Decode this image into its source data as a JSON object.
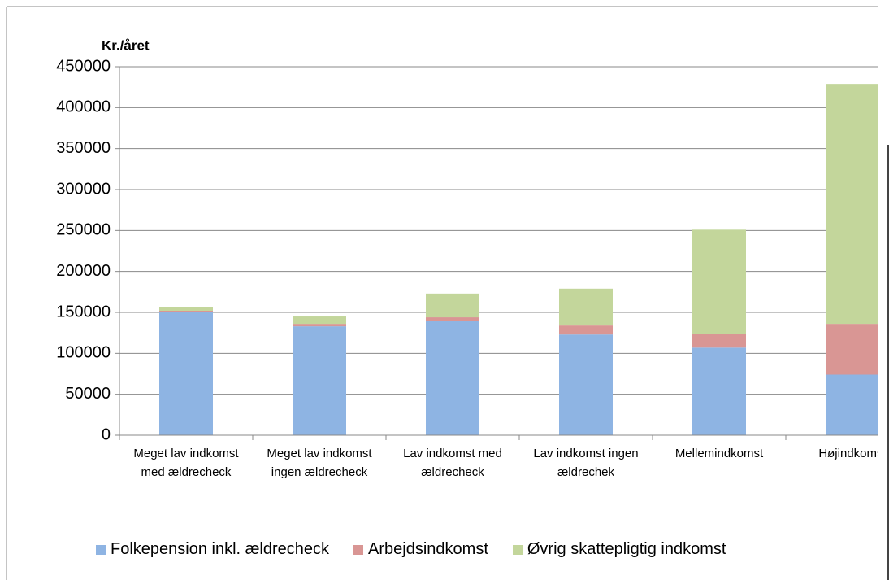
{
  "chart_data": {
    "type": "stacked_bar",
    "y_label": "Kr./året",
    "categories": [
      "Meget lav indkomst med ældrecheck",
      "Meget lav indkomst ingen ældrecheck",
      "Lav indkomst med ældrecheck",
      "Lav indkomst ingen ældrechek",
      "Mellemindkomst",
      "Højindkomst"
    ],
    "series": [
      {
        "name": "Folkepension inkl. ældrecheck",
        "color": "#8eb4e3",
        "values": [
          150000,
          133000,
          140000,
          123000,
          107000,
          74000
        ]
      },
      {
        "name": "Arbejdsindkomst",
        "color": "#d99694",
        "values": [
          2000,
          3000,
          4000,
          11000,
          17000,
          62000
        ]
      },
      {
        "name": "Øvrig skattepligtig indkomst",
        "color": "#c3d69b",
        "values": [
          4000,
          9000,
          29000,
          45000,
          127000,
          293000
        ]
      }
    ],
    "ylim": [
      0,
      450000
    ],
    "yticks": [
      0,
      50000,
      100000,
      150000,
      200000,
      250000,
      300000,
      350000,
      400000,
      450000
    ],
    "grid": true,
    "legend": "bottom"
  }
}
